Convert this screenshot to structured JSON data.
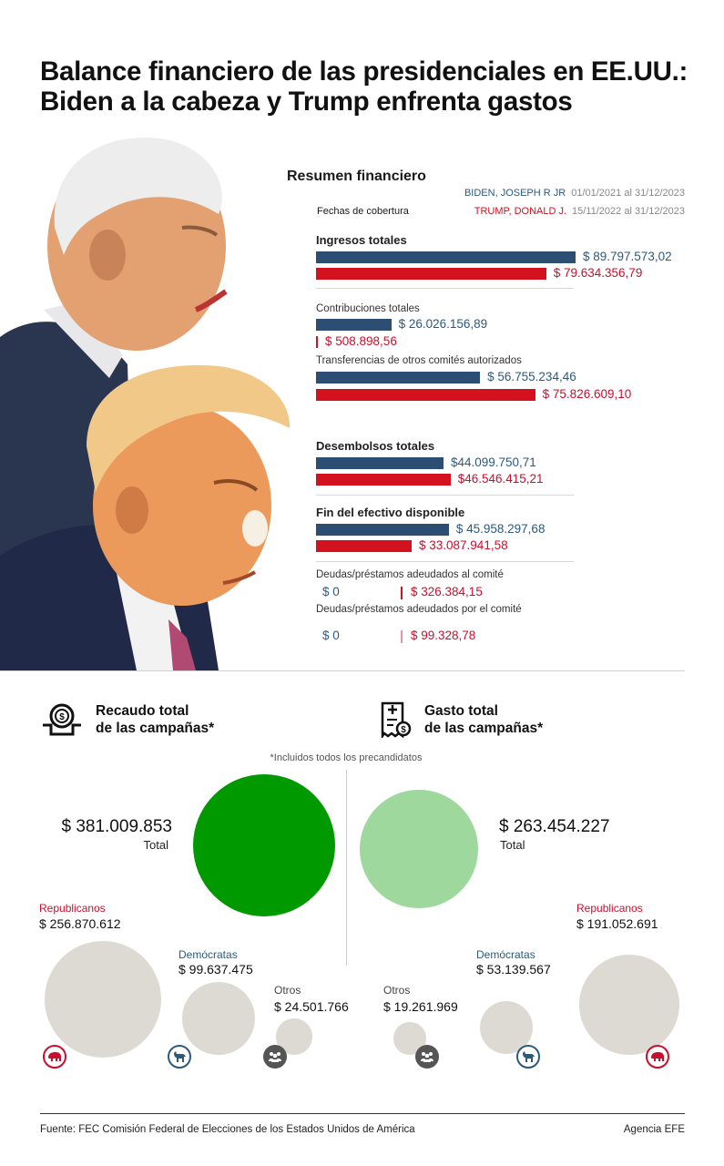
{
  "title": "Balance financiero de las presidenciales en EE.UU.: Biden a la cabeza y Trump enfrenta gastos",
  "summary": {
    "title": "Resumen financiero",
    "coverage_label": "Fechas de cobertura",
    "biden": {
      "name": "BIDEN, JOSEPH R JR",
      "dates": "01/01/2021 al 31/12/2023",
      "color": "#2b4e72"
    },
    "trump": {
      "name": "TRUMP, DONALD J.",
      "dates": "15/11/2022 al 31/12/2023",
      "color": "#d4111e"
    }
  },
  "chart_data": [
    {
      "type": "bar",
      "series": [
        {
          "name": "BIDEN, JOSEPH R JR",
          "color": "#2b4e72"
        },
        {
          "name": "TRUMP, DONALD J.",
          "color": "#d4111e"
        }
      ],
      "rows": [
        {
          "label": "Ingresos totales",
          "bold": true,
          "biden": 89797573.02,
          "trump": 79634356.79,
          "biden_label": "$ 89.797.573,02",
          "trump_label": "$ 79.634.356,79"
        },
        {
          "label": "Contribuciones totales",
          "bold": false,
          "biden": 26026156.89,
          "trump": 508898.56,
          "biden_label": "$ 26.026.156,89",
          "trump_label": "$ 508.898,56"
        },
        {
          "label": "Transferencias de otros comités autorizados",
          "bold": false,
          "biden": 56755234.46,
          "trump": 75826609.1,
          "biden_label": "$ 56.755.234,46",
          "trump_label": "$ 75.826.609,10"
        },
        {
          "label": "Desembolsos totales",
          "bold": true,
          "biden": 44099750.71,
          "trump": 46546415.21,
          "biden_label": "$44.099.750,71",
          "trump_label": "$46.546.415,21"
        },
        {
          "label": "Fin del efectivo disponible",
          "bold": true,
          "biden": 45958297.68,
          "trump": 33087941.58,
          "biden_label": "$ 45.958.297,68",
          "trump_label": "$ 33.087.941,58"
        },
        {
          "label": "Deudas/préstamos adeudados al comité",
          "bold": false,
          "biden": 0,
          "trump": 326384.15,
          "biden_label": "$ 0",
          "trump_label": "$ 326.384,15"
        },
        {
          "label": "Deudas/préstamos adeudados por el comité",
          "bold": false,
          "biden": 0,
          "trump": 99328.78,
          "biden_label": "$ 0",
          "trump_label": "$ 99.328,78"
        }
      ]
    },
    {
      "type": "bubble",
      "title": "Recaudo total de las campañas*",
      "total": 381009853,
      "total_label": "$ 381.009.853",
      "total_caption": "Total",
      "color": "#009a00",
      "parties": [
        {
          "name": "Republicanos",
          "value": 256870612,
          "label": "$ 256.870.612"
        },
        {
          "name": "Demócratas",
          "value": 99637475,
          "label": "$ 99.637.475"
        },
        {
          "name": "Otros",
          "value": 24501766,
          "label": "$ 24.501.766"
        }
      ]
    },
    {
      "type": "bubble",
      "title": "Gasto total de las campañas*",
      "total": 263454227,
      "total_label": "$ 263.454.227",
      "total_caption": "Total",
      "color": "#9fd89d",
      "parties": [
        {
          "name": "Republicanos",
          "value": 191052691,
          "label": "$ 191.052.691"
        },
        {
          "name": "Demócratas",
          "value": 53139567,
          "label": "$ 53.139.567"
        },
        {
          "name": "Otros",
          "value": 19261969,
          "label": "$ 19.261.969"
        }
      ]
    }
  ],
  "collect": {
    "title_line1": "Recaudo total",
    "title_line2": "de las campañas*"
  },
  "spend": {
    "title_line1": "Gasto total",
    "title_line2": "de las campañas*"
  },
  "note": "*Incluidos todos los precandidatos",
  "colors": {
    "party_bubble": "#dddad3",
    "republican": "#c8102e",
    "democrat": "#2b5a7f"
  },
  "footer": {
    "source": "Fuente: FEC Comisión Federal de Elecciones de los Estados Unidos de América",
    "agency": "Agencia EFE"
  }
}
